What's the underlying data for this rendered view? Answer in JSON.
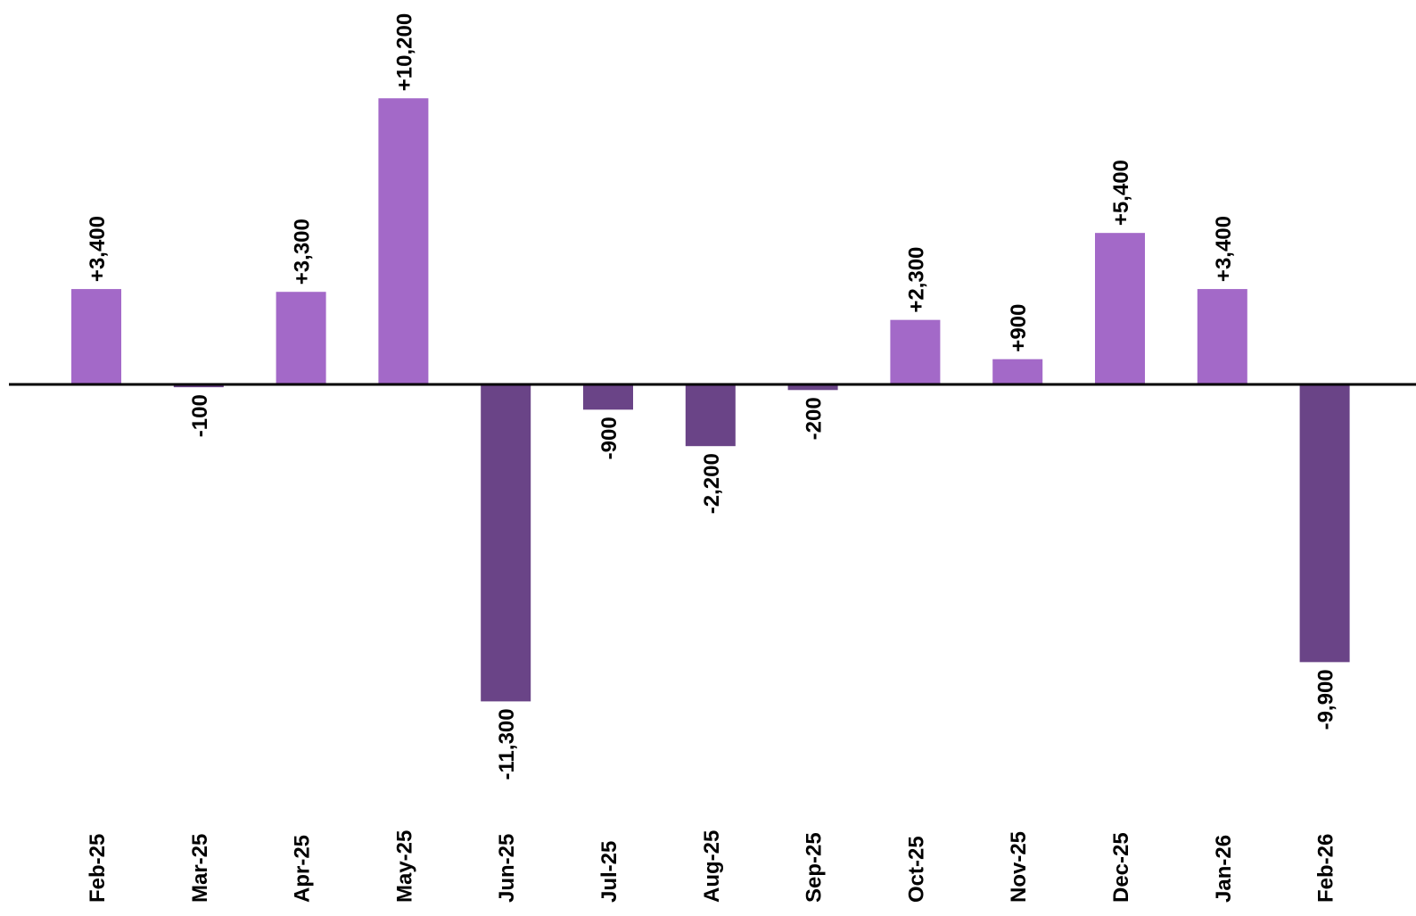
{
  "colors": {
    "positive": "#a369c8",
    "negative": "#6a4487",
    "baseline": "#000000",
    "text": "#000000"
  },
  "chart_data": {
    "type": "bar",
    "title": "",
    "xlabel": "",
    "ylabel": "",
    "categories": [
      "Feb-25",
      "Mar-25",
      "Apr-25",
      "May-25",
      "Jun-25",
      "Jul-25",
      "Aug-25",
      "Sep-25",
      "Oct-25",
      "Nov-25",
      "Dec-25",
      "Jan-26",
      "Feb-26"
    ],
    "values": [
      3400,
      -100,
      3300,
      10200,
      -11300,
      -900,
      -2200,
      -200,
      2300,
      900,
      5400,
      3400,
      -9900
    ],
    "labels": [
      "+3,400",
      "-100",
      "+3,300",
      "+10,200",
      "-11,300",
      "-900",
      "-2,200",
      "-200",
      "+2,300",
      "+900",
      "+5,400",
      "+3,400",
      "-9,900"
    ],
    "ylim": [
      -11300,
      10200
    ],
    "grid": false,
    "legend": "none"
  }
}
